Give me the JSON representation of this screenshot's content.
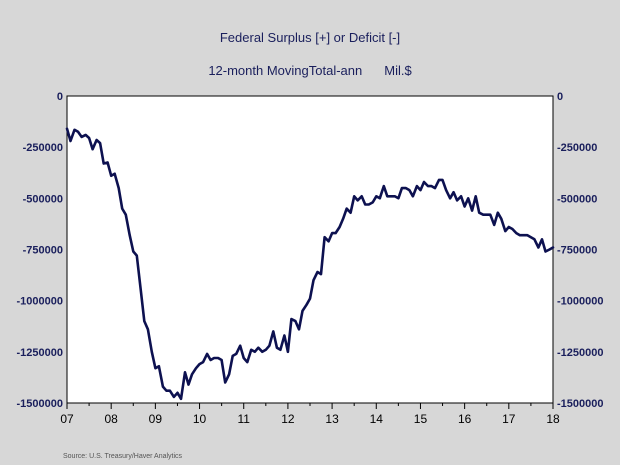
{
  "chart_data": {
    "type": "line",
    "title": "Federal Surplus [+] or Deficit [-]",
    "subtitle": "12-month MovingTotal-ann",
    "units": "Mil.$",
    "source": "Source:  U.S. Treasury/Haver Analytics",
    "x_ticks": [
      "07",
      "08",
      "09",
      "10",
      "11",
      "12",
      "13",
      "14",
      "15",
      "16",
      "17",
      "18"
    ],
    "xlim": [
      2007.0,
      2018.0
    ],
    "ylim": [
      -1500000,
      0
    ],
    "y_ticks": [
      0,
      -250000,
      -500000,
      -750000,
      -1000000,
      -1250000,
      -1500000
    ],
    "y_tick_labels": [
      "0",
      "-250000",
      "-500000",
      "-750000",
      "-1000000",
      "-1250000",
      "-1500000"
    ],
    "grid": true,
    "line_color": "#0d1150",
    "series": [
      {
        "x": [
          2007.0,
          2007.08,
          2007.17,
          2007.25,
          2007.33,
          2007.42,
          2007.5,
          2007.58,
          2007.67,
          2007.75,
          2007.83,
          2007.92,
          2008.0,
          2008.08,
          2008.17,
          2008.25,
          2008.33,
          2008.42,
          2008.5,
          2008.58,
          2008.67,
          2008.75,
          2008.83,
          2008.92,
          2009.0,
          2009.08,
          2009.17,
          2009.25,
          2009.33,
          2009.42,
          2009.5,
          2009.58,
          2009.67,
          2009.75,
          2009.83,
          2009.92,
          2010.0,
          2010.08,
          2010.17,
          2010.25,
          2010.33,
          2010.42,
          2010.5,
          2010.58,
          2010.67,
          2010.75,
          2010.83,
          2010.92,
          2011.0,
          2011.08,
          2011.17,
          2011.25,
          2011.33,
          2011.42,
          2011.5,
          2011.58,
          2011.67,
          2011.75,
          2011.83,
          2011.92,
          2012.0,
          2012.08,
          2012.17,
          2012.25,
          2012.33,
          2012.42,
          2012.5,
          2012.58,
          2012.67,
          2012.75,
          2012.83,
          2012.92,
          2013.0,
          2013.08,
          2013.17,
          2013.25,
          2013.33,
          2013.42,
          2013.5,
          2013.58,
          2013.67,
          2013.75,
          2013.83,
          2013.92,
          2014.0,
          2014.08,
          2014.17,
          2014.25,
          2014.33,
          2014.42,
          2014.5,
          2014.58,
          2014.67,
          2014.75,
          2014.83,
          2014.92,
          2015.0,
          2015.08,
          2015.17,
          2015.25,
          2015.33,
          2015.42,
          2015.5,
          2015.58,
          2015.67,
          2015.75,
          2015.83,
          2015.92,
          2016.0,
          2016.08,
          2016.17,
          2016.25,
          2016.33,
          2016.42,
          2016.5,
          2016.58,
          2016.67,
          2016.75,
          2016.83,
          2016.92,
          2017.0,
          2017.08,
          2017.17,
          2017.25,
          2017.33,
          2017.42,
          2017.5,
          2017.58,
          2017.67,
          2017.75,
          2017.83,
          2017.92,
          2018.0
        ],
        "values": [
          -160000,
          -220000,
          -165000,
          -175000,
          -200000,
          -190000,
          -205000,
          -260000,
          -215000,
          -230000,
          -330000,
          -325000,
          -390000,
          -380000,
          -450000,
          -550000,
          -580000,
          -680000,
          -760000,
          -780000,
          -950000,
          -1100000,
          -1140000,
          -1250000,
          -1330000,
          -1320000,
          -1420000,
          -1440000,
          -1440000,
          -1470000,
          -1450000,
          -1480000,
          -1350000,
          -1410000,
          -1360000,
          -1330000,
          -1310000,
          -1300000,
          -1260000,
          -1290000,
          -1280000,
          -1280000,
          -1290000,
          -1400000,
          -1360000,
          -1270000,
          -1260000,
          -1220000,
          -1280000,
          -1300000,
          -1240000,
          -1250000,
          -1230000,
          -1250000,
          -1240000,
          -1220000,
          -1150000,
          -1230000,
          -1240000,
          -1170000,
          -1250000,
          -1090000,
          -1100000,
          -1140000,
          -1050000,
          -1020000,
          -990000,
          -900000,
          -860000,
          -870000,
          -690000,
          -710000,
          -670000,
          -670000,
          -640000,
          -600000,
          -550000,
          -570000,
          -490000,
          -510000,
          -490000,
          -530000,
          -530000,
          -520000,
          -490000,
          -500000,
          -440000,
          -490000,
          -490000,
          -490000,
          -500000,
          -450000,
          -450000,
          -460000,
          -490000,
          -440000,
          -460000,
          -420000,
          -440000,
          -440000,
          -450000,
          -410000,
          -410000,
          -460000,
          -500000,
          -470000,
          -510000,
          -490000,
          -540000,
          -500000,
          -560000,
          -490000,
          -570000,
          -580000,
          -580000,
          -580000,
          -630000,
          -570000,
          -600000,
          -660000,
          -640000,
          -650000,
          -670000,
          -680000,
          -680000,
          -680000,
          -690000,
          -700000,
          -740000,
          -700000,
          -760000,
          -750000,
          -740000
        ]
      }
    ]
  }
}
